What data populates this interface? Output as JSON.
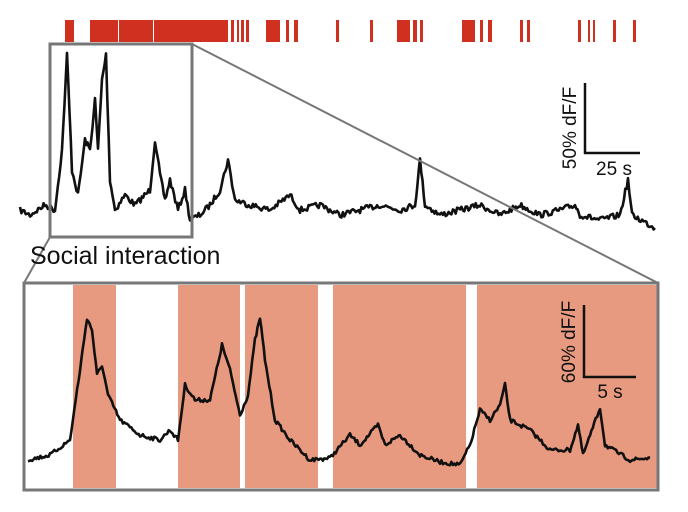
{
  "figure": {
    "label": "Social interaction",
    "overview_scale": {
      "vertical": "50% dF/F",
      "horizontal": "25 s"
    },
    "zoom_scale": {
      "vertical": "60% dF/F",
      "horizontal": "5 s"
    }
  }
}
